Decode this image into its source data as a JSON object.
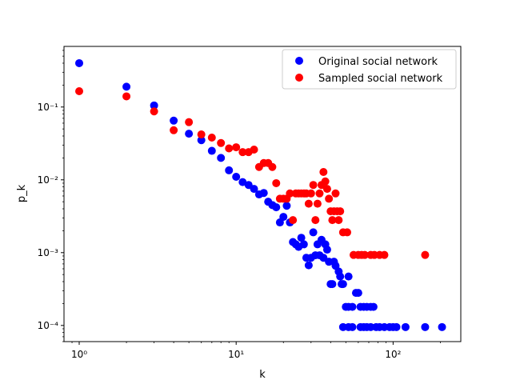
{
  "chart_data": {
    "type": "scatter",
    "title": "",
    "xlabel": "k",
    "ylabel": "p_k",
    "xscale": "log",
    "yscale": "log",
    "xlim": [
      0.8,
      270
    ],
    "ylim": [
      6e-05,
      0.68
    ],
    "grid": false,
    "legend_position": "top-right",
    "x_ticks": [
      {
        "value": 1,
        "label": "10⁰"
      },
      {
        "value": 10,
        "label": "10¹"
      },
      {
        "value": 100,
        "label": "10²"
      }
    ],
    "y_ticks": [
      {
        "value": 0.0001,
        "label": "10⁻⁴"
      },
      {
        "value": 0.001,
        "label": "10⁻³"
      },
      {
        "value": 0.01,
        "label": "10⁻²"
      },
      {
        "value": 0.1,
        "label": "10⁻¹"
      }
    ],
    "series": [
      {
        "name": "Original social network",
        "color": "#0000ff",
        "points": [
          [
            1,
            0.4
          ],
          [
            2,
            0.19
          ],
          [
            3,
            0.105
          ],
          [
            4,
            0.065
          ],
          [
            5,
            0.043
          ],
          [
            6,
            0.035
          ],
          [
            7,
            0.025
          ],
          [
            8,
            0.02
          ],
          [
            9,
            0.0135
          ],
          [
            10,
            0.011
          ],
          [
            11,
            0.0093
          ],
          [
            12,
            0.0085
          ],
          [
            13,
            0.0075
          ],
          [
            14,
            0.0063
          ],
          [
            15,
            0.0066
          ],
          [
            16,
            0.005
          ],
          [
            17,
            0.0045
          ],
          [
            18,
            0.0042
          ],
          [
            19,
            0.0026
          ],
          [
            20,
            0.0031
          ],
          [
            21,
            0.0044
          ],
          [
            22,
            0.0026
          ],
          [
            23,
            0.0014
          ],
          [
            24,
            0.0013
          ],
          [
            25,
            0.0012
          ],
          [
            26,
            0.0016
          ],
          [
            27,
            0.0013
          ],
          [
            28,
            0.00085
          ],
          [
            29,
            0.00067
          ],
          [
            30,
            0.00085
          ],
          [
            31,
            0.0019
          ],
          [
            32,
            0.00092
          ],
          [
            33,
            0.0013
          ],
          [
            34,
            0.00092
          ],
          [
            35,
            0.0015
          ],
          [
            36,
            0.00085
          ],
          [
            37,
            0.0013
          ],
          [
            38,
            0.0011
          ],
          [
            39,
            0.00075
          ],
          [
            40,
            0.00037
          ],
          [
            41,
            0.00037
          ],
          [
            42,
            0.00075
          ],
          [
            43,
            0.00066
          ],
          [
            45,
            0.00055
          ],
          [
            46,
            0.00047
          ],
          [
            47,
            0.00037
          ],
          [
            48,
            0.00037
          ],
          [
            52,
            0.00047
          ],
          [
            50,
            0.00018
          ],
          [
            52,
            0.00018
          ],
          [
            55,
            0.00018
          ],
          [
            58,
            0.00028
          ],
          [
            60,
            0.00028
          ],
          [
            62,
            0.00018
          ],
          [
            65,
            0.00018
          ],
          [
            68,
            0.00018
          ],
          [
            72,
            0.00018
          ],
          [
            75,
            0.00018
          ],
          [
            48,
            9.5e-05
          ],
          [
            52,
            9.5e-05
          ],
          [
            55,
            9.5e-05
          ],
          [
            62,
            9.5e-05
          ],
          [
            65,
            9.5e-05
          ],
          [
            68,
            9.5e-05
          ],
          [
            72,
            9.5e-05
          ],
          [
            78,
            9.5e-05
          ],
          [
            82,
            9.5e-05
          ],
          [
            88,
            9.5e-05
          ],
          [
            95,
            9.5e-05
          ],
          [
            100,
            9.5e-05
          ],
          [
            105,
            9.5e-05
          ],
          [
            120,
            9.5e-05
          ],
          [
            160,
            9.5e-05
          ],
          [
            205,
            9.5e-05
          ]
        ]
      },
      {
        "name": "Sampled social network",
        "color": "#ff0000",
        "points": [
          [
            1,
            0.165
          ],
          [
            2,
            0.14
          ],
          [
            3,
            0.087
          ],
          [
            4,
            0.048
          ],
          [
            5,
            0.062
          ],
          [
            6,
            0.042
          ],
          [
            7,
            0.038
          ],
          [
            8,
            0.032
          ],
          [
            9,
            0.027
          ],
          [
            10,
            0.028
          ],
          [
            11,
            0.024
          ],
          [
            12,
            0.024
          ],
          [
            13,
            0.026
          ],
          [
            14,
            0.015
          ],
          [
            15,
            0.017
          ],
          [
            16,
            0.017
          ],
          [
            17,
            0.015
          ],
          [
            18,
            0.009
          ],
          [
            19,
            0.0055
          ],
          [
            20,
            0.0055
          ],
          [
            21,
            0.0055
          ],
          [
            22,
            0.0065
          ],
          [
            23,
            0.0028
          ],
          [
            24,
            0.0065
          ],
          [
            25,
            0.0065
          ],
          [
            26,
            0.0065
          ],
          [
            27,
            0.0065
          ],
          [
            28,
            0.0065
          ],
          [
            29,
            0.0047
          ],
          [
            30,
            0.0065
          ],
          [
            31,
            0.0085
          ],
          [
            32,
            0.0028
          ],
          [
            33,
            0.0047
          ],
          [
            34,
            0.0065
          ],
          [
            35,
            0.0085
          ],
          [
            36,
            0.0128
          ],
          [
            37,
            0.0095
          ],
          [
            38,
            0.0075
          ],
          [
            39,
            0.0055
          ],
          [
            40,
            0.0037
          ],
          [
            41,
            0.0028
          ],
          [
            42,
            0.0037
          ],
          [
            43,
            0.0065
          ],
          [
            44,
            0.0037
          ],
          [
            45,
            0.0028
          ],
          [
            46,
            0.0037
          ],
          [
            48,
            0.0019
          ],
          [
            51,
            0.0019
          ],
          [
            56,
            0.00093
          ],
          [
            60,
            0.00093
          ],
          [
            63,
            0.00093
          ],
          [
            66,
            0.00093
          ],
          [
            72,
            0.00093
          ],
          [
            76,
            0.00093
          ],
          [
            82,
            0.00093
          ],
          [
            88,
            0.00093
          ],
          [
            160,
            0.00093
          ]
        ]
      }
    ]
  }
}
